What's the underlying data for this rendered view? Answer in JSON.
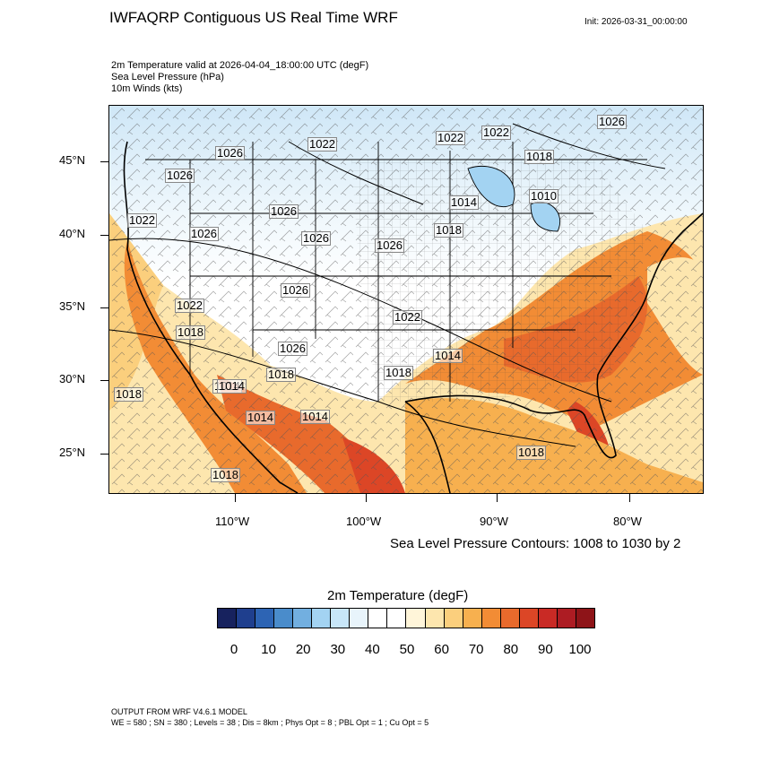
{
  "header": {
    "title": "IWFAQRP Contiguous US Real Time WRF",
    "init": "Init: 2026-03-31_00:00:00"
  },
  "fields": {
    "line1": "2m Temperature valid at 2026-04-04_18:00:00 UTC   (degF)",
    "line2": "Sea Level Pressure   (hPa)",
    "line3": "10m Winds   (kts)"
  },
  "axes": {
    "lat_labels": [
      "45°N",
      "40°N",
      "35°N",
      "30°N",
      "25°N"
    ],
    "lon_labels": [
      "110°W",
      "100°W",
      "90°W",
      "80°W"
    ]
  },
  "isobar_labels": [
    "1026",
    "1022",
    "1022",
    "1022",
    "1026",
    "1018",
    "1026",
    "1026",
    "1014",
    "1010",
    "1022",
    "1026",
    "1026",
    "1026",
    "1018",
    "1026",
    "1022",
    "1018",
    "1026",
    "1022",
    "1018",
    "1018",
    "1014",
    "1014",
    "1018",
    "1018",
    "1014",
    "1014",
    "1018",
    "1014"
  ],
  "contour_note": "Sea Level Pressure Contours: 1008 to 1030 by 2",
  "colorbar": {
    "title": "2m Temperature  (degF)",
    "colors": [
      "#17225e",
      "#1f3f8e",
      "#2d64b4",
      "#4a8ccb",
      "#72afe0",
      "#a3d3f2",
      "#c8e6f8",
      "#e8f4fb",
      "#ffffff",
      "#ffffff",
      "#fff5d9",
      "#fde6ae",
      "#fbcf7d",
      "#f7b04f",
      "#f28c35",
      "#e86a2c",
      "#dc4626",
      "#c92a25",
      "#ad1c23",
      "#8e1418"
    ],
    "labels": [
      "0",
      "10",
      "20",
      "30",
      "40",
      "50",
      "60",
      "70",
      "80",
      "90",
      "100"
    ]
  },
  "footer": {
    "line1": "OUTPUT FROM WRF V4.6.1 MODEL",
    "line2": "WE = 580 ; SN = 380 ; Levels = 38 ; Dis = 8km ; Phys Opt = 8 ; PBL Opt = 1 ; Cu Opt = 5"
  }
}
